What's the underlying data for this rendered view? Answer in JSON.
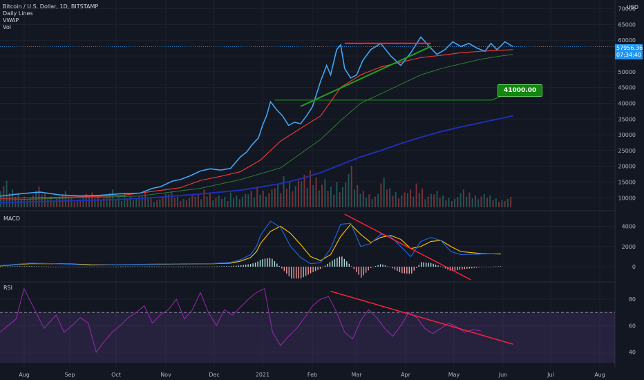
{
  "header": {
    "symbol_line": "Bitcoin / U.S. Dollar, 1D, BITSTAMP",
    "indicators": [
      "Daily Lines",
      "VWAP",
      "Vol"
    ],
    "currency": "USD"
  },
  "price_tag": {
    "price": "57956.36",
    "countdown": "07:34:40"
  },
  "callout": {
    "label": "41000.00"
  },
  "panes": {
    "macd_title": "MACD",
    "rsi_title": "RSI"
  },
  "colors": {
    "background": "#131722",
    "price": "#42a5f5",
    "ma_red": "#e53935",
    "ma_green": "#2e7d32",
    "vwap": "#1e2fb5",
    "macd_line": "#1e63d6",
    "signal_line": "#f5b800",
    "rsi": "#9c27b0",
    "trendline_red": "#ff1f3a",
    "trendline_green": "#21a021",
    "callout": "#13870f"
  },
  "chart_data": [
    {
      "type": "line",
      "title": "Bitcoin / U.S. Dollar, 1D, BITSTAMP",
      "x_ticks": [
        "Aug",
        "Sep",
        "Oct",
        "Nov",
        "Dec",
        "2021",
        "Feb",
        "Mar",
        "Apr",
        "May",
        "Jun",
        "Jul",
        "Aug"
      ],
      "y_ticks": [
        10000,
        15000,
        20000,
        25000,
        30000,
        35000,
        40000,
        45000,
        50000,
        55000,
        60000,
        65000,
        70000
      ],
      "ylim": [
        7000,
        71000
      ],
      "series": [
        {
          "name": "Price",
          "x": [
            0,
            10,
            20,
            30,
            40,
            50,
            60,
            70,
            76,
            80,
            86,
            90,
            95,
            100,
            105,
            110,
            115,
            120,
            123,
            126,
            129,
            131,
            133,
            135,
            138,
            141,
            144,
            147,
            150,
            153,
            156,
            160,
            163,
            165,
            168,
            170,
            172,
            175,
            178,
            181,
            185,
            190,
            195,
            200,
            205,
            210,
            215,
            218,
            222,
            226,
            230,
            234,
            238,
            242,
            245,
            248,
            252,
            256
          ],
          "values": [
            10500,
            11300,
            11800,
            10900,
            10600,
            10800,
            11300,
            11500,
            13000,
            13500,
            15300,
            15800,
            17000,
            18500,
            19200,
            18800,
            19300,
            23000,
            24500,
            27000,
            29000,
            33000,
            36000,
            40500,
            38000,
            36000,
            33000,
            34000,
            33500,
            36000,
            39000,
            47000,
            52000,
            49000,
            57000,
            58500,
            51000,
            48000,
            49000,
            53500,
            57000,
            59000,
            55000,
            52000,
            56000,
            61000,
            57500,
            55500,
            57000,
            59500,
            58000,
            59000,
            57500,
            56500,
            59000,
            57000,
            59500,
            57956
          ]
        },
        {
          "name": "MA red",
          "x": [
            0,
            40,
            60,
            90,
            100,
            110,
            120,
            130,
            140,
            150,
            160,
            170,
            180,
            190,
            200,
            210,
            220,
            230,
            240,
            256
          ],
          "values": [
            9800,
            10300,
            10700,
            13200,
            15500,
            16800,
            18300,
            22000,
            28000,
            32000,
            36000,
            45000,
            49000,
            51500,
            53000,
            54500,
            55200,
            56000,
            56500,
            57000
          ]
        },
        {
          "name": "MA green",
          "x": [
            0,
            40,
            70,
            100,
            120,
            140,
            150,
            160,
            170,
            180,
            190,
            200,
            210,
            220,
            230,
            240,
            250,
            256
          ],
          "values": [
            9300,
            10000,
            10600,
            13000,
            15800,
            19500,
            24000,
            28500,
            34500,
            40000,
            43000,
            46000,
            49000,
            51000,
            52500,
            54000,
            55000,
            55500
          ]
        },
        {
          "name": "VWAP",
          "x": [
            0,
            60,
            80,
            100,
            120,
            140,
            150,
            160,
            170,
            180,
            190,
            200,
            210,
            220,
            230,
            256
          ],
          "values": [
            8500,
            9500,
            10200,
            11200,
            12400,
            14500,
            16000,
            18000,
            20500,
            23000,
            25000,
            27200,
            29200,
            31000,
            32500,
            36000
          ]
        }
      ],
      "volume": [
        18,
        12,
        9,
        8,
        14,
        9,
        7,
        11,
        6,
        9,
        10,
        8,
        12,
        7,
        9,
        8,
        10,
        6,
        9,
        11,
        7,
        8,
        9,
        12,
        8,
        7,
        10,
        9,
        11,
        14,
        12,
        16,
        21,
        18,
        22,
        25,
        19,
        14,
        17,
        28,
        15,
        11,
        9,
        20,
        13,
        10,
        12,
        16,
        9,
        11,
        8,
        7,
        12,
        10,
        9,
        8,
        6,
        7
      ],
      "annotations": {
        "horizontal_resistance": 59000,
        "callout_level": 41000
      }
    },
    {
      "type": "line",
      "title": "MACD",
      "y_ticks": [
        0,
        2000,
        4000
      ],
      "ylim": [
        -1300,
        5200
      ],
      "series": [
        {
          "name": "MACD",
          "x": [
            0,
            15,
            30,
            45,
            60,
            75,
            90,
            105,
            115,
            120,
            125,
            128,
            130,
            135,
            140,
            145,
            150,
            155,
            160,
            165,
            170,
            175,
            180,
            185,
            190,
            195,
            200,
            205,
            210,
            215,
            220,
            225,
            230,
            240,
            250
          ],
          "values": [
            100,
            350,
            280,
            150,
            200,
            250,
            280,
            300,
            420,
            700,
            1200,
            2000,
            3100,
            4500,
            3900,
            2000,
            900,
            300,
            400,
            1800,
            4200,
            4300,
            2000,
            2300,
            3200,
            3000,
            2000,
            1000,
            2500,
            2900,
            2600,
            1500,
            1200,
            1250,
            1300
          ]
        },
        {
          "name": "Signal",
          "x": [
            0,
            15,
            30,
            45,
            60,
            75,
            90,
            105,
            115,
            120,
            125,
            128,
            130,
            135,
            140,
            145,
            150,
            155,
            160,
            165,
            170,
            175,
            180,
            185,
            190,
            195,
            200,
            205,
            210,
            215,
            220,
            225,
            230,
            240,
            250
          ],
          "values": [
            80,
            300,
            300,
            200,
            180,
            230,
            270,
            290,
            350,
            550,
            900,
            1500,
            2300,
            3500,
            4000,
            3300,
            2200,
            1000,
            600,
            1200,
            3000,
            4200,
            3200,
            2400,
            2900,
            3100,
            2700,
            1800,
            2000,
            2500,
            2600,
            2000,
            1500,
            1300,
            1250
          ]
        }
      ],
      "trendline": {
        "from": [
          172,
          5200
        ],
        "to": [
          235,
          -1300
        ]
      }
    },
    {
      "type": "line",
      "title": "RSI",
      "y_ticks": [
        40,
        60,
        80
      ],
      "ylim": [
        32,
        92
      ],
      "bands": [
        30,
        70
      ],
      "series": [
        {
          "name": "RSI",
          "x": [
            0,
            8,
            12,
            18,
            22,
            28,
            32,
            36,
            40,
            44,
            48,
            52,
            56,
            60,
            64,
            68,
            72,
            76,
            80,
            84,
            88,
            92,
            96,
            100,
            104,
            108,
            112,
            116,
            120,
            124,
            128,
            132,
            136,
            140,
            144,
            148,
            152,
            156,
            160,
            164,
            168,
            172,
            176,
            180,
            184,
            188,
            192,
            196,
            200,
            204,
            208,
            212,
            216,
            220,
            224,
            228,
            232,
            236,
            240
          ],
          "values": [
            55,
            65,
            88,
            70,
            58,
            68,
            55,
            60,
            66,
            62,
            40,
            48,
            55,
            60,
            66,
            70,
            75,
            62,
            68,
            72,
            80,
            65,
            72,
            85,
            70,
            60,
            72,
            68,
            74,
            80,
            85,
            88,
            55,
            45,
            52,
            58,
            66,
            75,
            80,
            82,
            70,
            55,
            50,
            64,
            72,
            66,
            58,
            52,
            60,
            70,
            66,
            58,
            54,
            58,
            62,
            59,
            55,
            57,
            56
          ]
        }
      ],
      "trendline": {
        "from": [
          165,
          86
        ],
        "to": [
          256,
          46
        ]
      }
    }
  ]
}
